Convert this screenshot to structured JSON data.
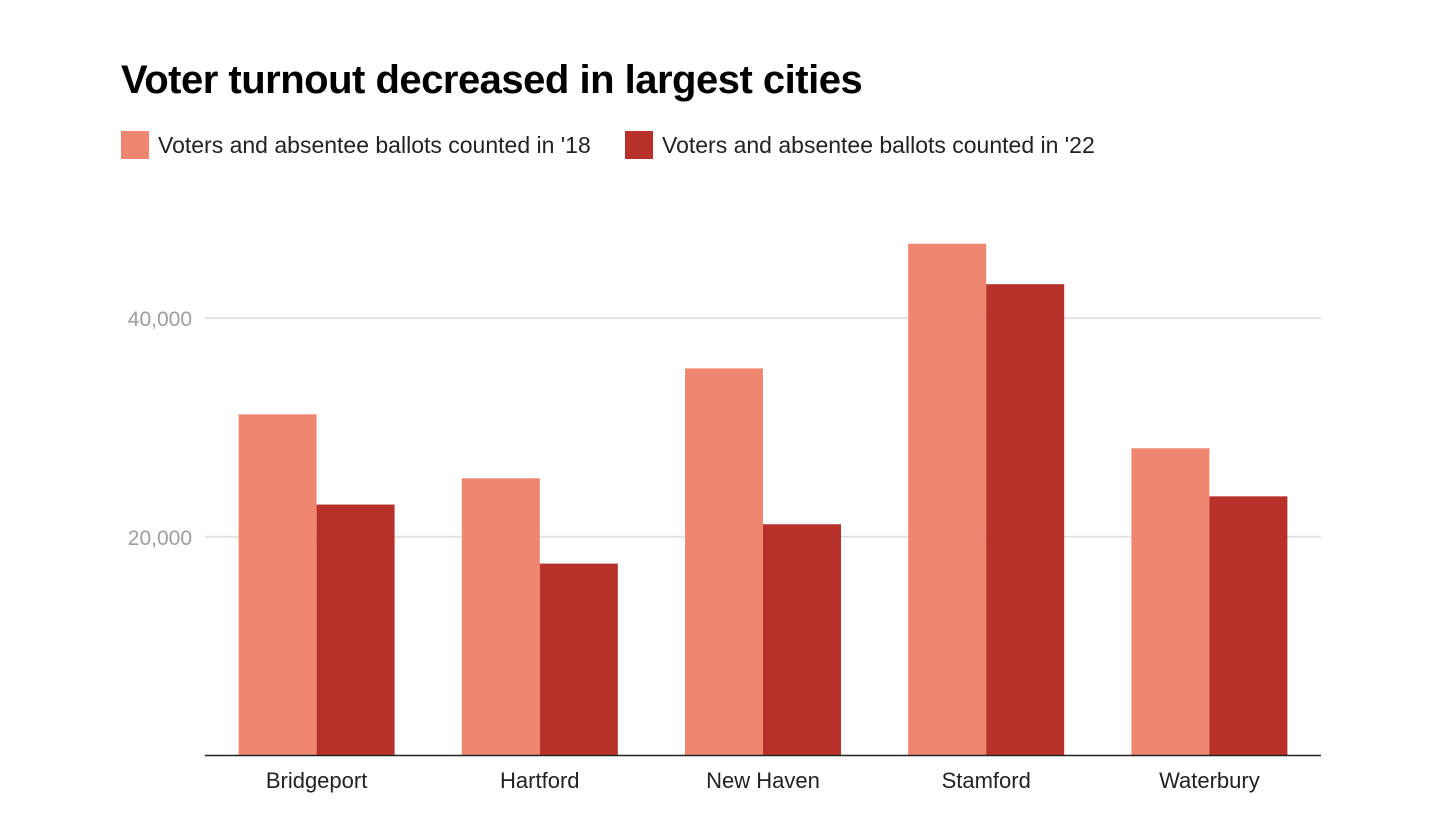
{
  "chart_data": {
    "type": "bar",
    "title": "Voter turnout decreased in largest cities",
    "xlabel": "",
    "ylabel": "",
    "categories": [
      "Bridgeport",
      "Hartford",
      "New Haven",
      "Stamford",
      "Waterbury"
    ],
    "series": [
      {
        "name": "Voters and absentee ballots counted in '18",
        "color": "#ef8770",
        "values": [
          31200,
          25350,
          35400,
          46800,
          28100
        ]
      },
      {
        "name": "Voters and absentee ballots counted in '22",
        "color": "#b7312a",
        "values": [
          22950,
          17550,
          21150,
          43100,
          23700
        ]
      }
    ],
    "yticks": [
      {
        "value": 20000,
        "label": "20,000"
      },
      {
        "value": 40000,
        "label": "40,000"
      }
    ],
    "ylim": [
      0,
      50000
    ],
    "grid": true,
    "legend": "top-left"
  }
}
